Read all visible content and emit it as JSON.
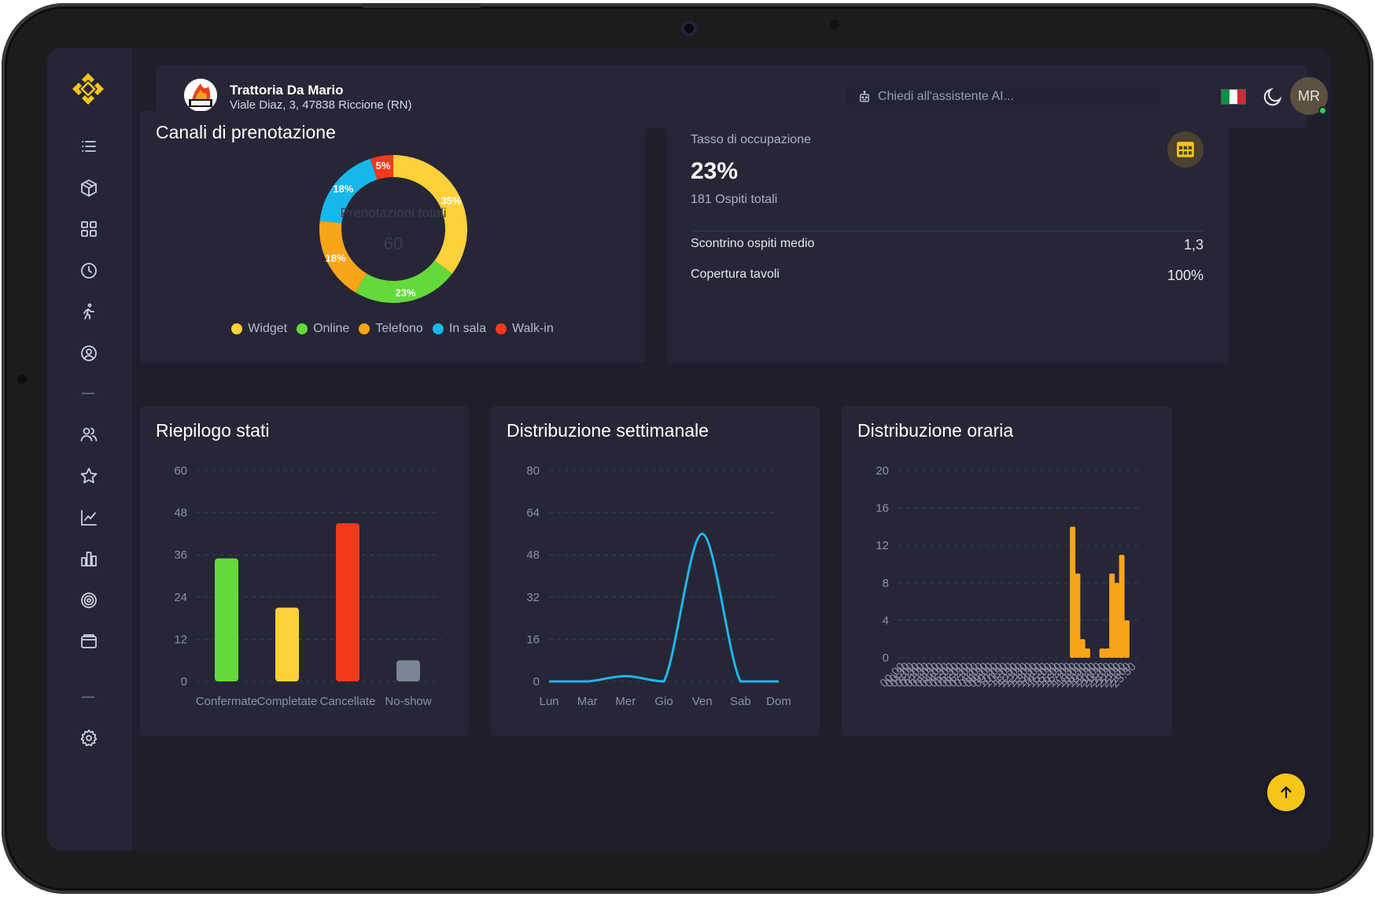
{
  "header": {
    "restaurant_name": "Trattoria Da Mario",
    "restaurant_address": "Viale Diaz, 3, 47838 Riccione (RN)",
    "ai_placeholder": "Chiedi all'assistente AI...",
    "avatar_initials": "MR",
    "flag_colors": [
      "#009246",
      "#ffffff",
      "#ce2b37"
    ]
  },
  "sidebar": {
    "icons": [
      "menu-icon",
      "box-icon",
      "grid-icon",
      "clock-icon",
      "walking-icon",
      "user-circle-icon",
      "users-icon",
      "star-icon",
      "line-chart-icon",
      "bar-chart-icon",
      "target-icon",
      "wallet-icon",
      "settings-icon"
    ]
  },
  "booking_channels": {
    "title": "Canali di prenotazione",
    "center_label": "Prenotazioni totali",
    "center_value": "60"
  },
  "occupancy": {
    "label": "Tasso di occupazione",
    "value": "23%",
    "sub": "181 Ospiti totali",
    "stats": [
      {
        "label": "Scontrino ospiti medio",
        "value": "1,3"
      },
      {
        "label": "Copertura tavoli",
        "value": "100%"
      }
    ]
  },
  "status_summary": {
    "title": "Riepilogo stati"
  },
  "weekly": {
    "title": "Distribuzione settimanale"
  },
  "hourly": {
    "title": "Distribuzione oraria"
  },
  "colors": {
    "accent": "#f5c518",
    "widget": "#fdd13a",
    "online": "#65d93a",
    "telefono": "#f9a51a",
    "in_sala": "#16b8ec",
    "walk_in": "#f43a1d",
    "line": "#1fb6e8",
    "hourly_bar": "#f9a51a"
  },
  "chart_data": [
    {
      "type": "pie",
      "title": "Canali di prenotazione",
      "categories": [
        "Widget",
        "Online",
        "Telefono",
        "In sala",
        "Walk-in"
      ],
      "values": [
        35,
        23,
        18,
        18,
        5
      ],
      "labels": [
        "35%",
        "23%",
        "18%",
        "18%",
        "5%"
      ],
      "colors": [
        "#fdd13a",
        "#65d93a",
        "#f9a51a",
        "#16b8ec",
        "#f43a1d"
      ],
      "legend": "bottom"
    },
    {
      "type": "bar",
      "title": "Riepilogo stati",
      "categories": [
        "Confermate",
        "Completate",
        "Cancellate",
        "No-show"
      ],
      "values": [
        35,
        21,
        45,
        6
      ],
      "colors": [
        "#65d93a",
        "#fdd13a",
        "#f43a1d",
        "#7a8596"
      ],
      "ylim": [
        0,
        60
      ],
      "yticks": [
        0,
        12,
        24,
        36,
        48,
        60
      ],
      "grid": true
    },
    {
      "type": "line",
      "title": "Distribuzione settimanale",
      "categories": [
        "Lun",
        "Mar",
        "Mer",
        "Gio",
        "Ven",
        "Sab",
        "Dom"
      ],
      "values": [
        0,
        0,
        2,
        0,
        56,
        0,
        0
      ],
      "ylim": [
        0,
        80
      ],
      "yticks": [
        0,
        16,
        32,
        48,
        64,
        80
      ],
      "grid": true
    },
    {
      "type": "bar",
      "title": "Distribuzione oraria",
      "categories": [
        "00:00",
        "00:30",
        "01:00",
        "01:30",
        "02:00",
        "02:30",
        "03:00",
        "03:30",
        "04:00",
        "04:30",
        "05:00",
        "05:30",
        "06:00",
        "06:30",
        "07:00",
        "07:30",
        "08:00",
        "08:30",
        "09:00",
        "09:30",
        "10:00",
        "10:30",
        "11:00",
        "11:30",
        "12:00",
        "12:30",
        "13:00",
        "13:30",
        "14:00",
        "14:30",
        "15:00",
        "15:30",
        "16:00",
        "16:30",
        "17:00",
        "17:30",
        "18:00",
        "18:30",
        "19:00",
        "19:30",
        "20:00",
        "20:30",
        "21:00",
        "21:30",
        "22:00",
        "22:30",
        "23:00",
        "23:30"
      ],
      "values": [
        0,
        0,
        0,
        0,
        0,
        0,
        0,
        0,
        0,
        0,
        0,
        0,
        0,
        0,
        0,
        0,
        0,
        0,
        0,
        0,
        0,
        0,
        0,
        0,
        0,
        0,
        0,
        0,
        0,
        0,
        0,
        0,
        0,
        0,
        14,
        9,
        2,
        1,
        0,
        0,
        1,
        1,
        9,
        8,
        11,
        4,
        0,
        0
      ],
      "ylim": [
        0,
        20
      ],
      "yticks": [
        0,
        4,
        8,
        12,
        16,
        20
      ],
      "grid": true
    }
  ]
}
